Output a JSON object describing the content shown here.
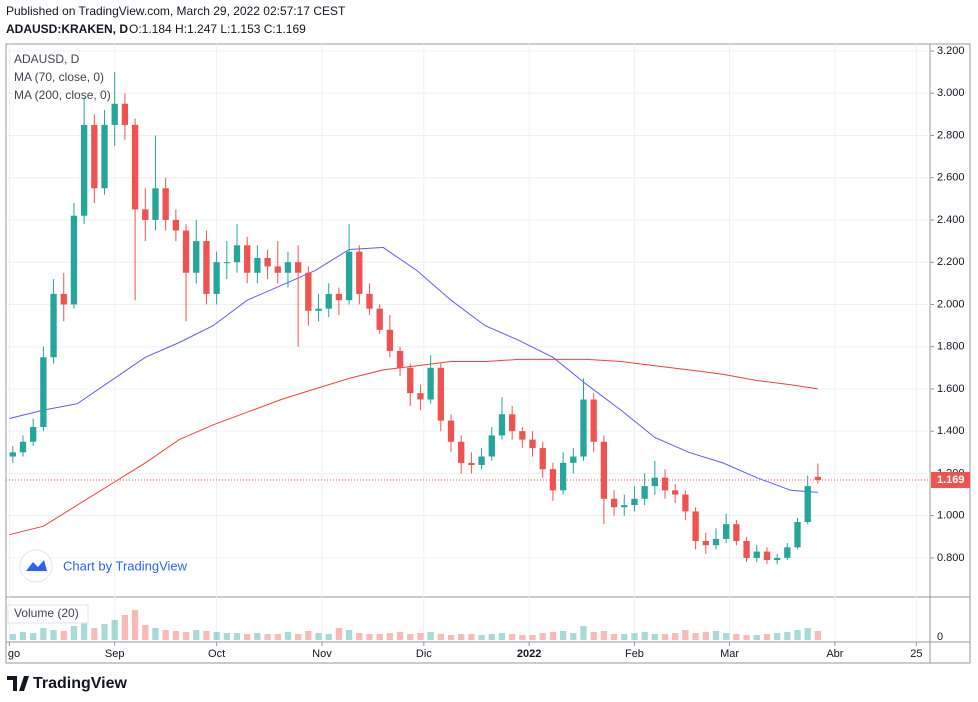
{
  "header": {
    "published": "Published on TradingView.com, March 29, 2022 02:57:17 CEST",
    "symbol": "ADAUSD:KRAKEN, D",
    "ohlc": "O:1.184 H:1.247 L:1.153 C:1.169"
  },
  "chart_data": {
    "type": "candlestick",
    "legend_title": "ADAUSD, D",
    "up_color": "#26a69a",
    "down_color": "#ef5350",
    "x": [
      1,
      4,
      7,
      10,
      13,
      16,
      19,
      22,
      25,
      28,
      31,
      34,
      37,
      40,
      43,
      46,
      49,
      52,
      55,
      58,
      61,
      64,
      67,
      70,
      73,
      76,
      79,
      82,
      85,
      88,
      91,
      94,
      97,
      100,
      103,
      106,
      109,
      112,
      115,
      118,
      121,
      124,
      127,
      130,
      133,
      136,
      139,
      142,
      145,
      148,
      151,
      154,
      157,
      160,
      163,
      166,
      169,
      172,
      175,
      178,
      181,
      184,
      187,
      190,
      193,
      196,
      199,
      202,
      205,
      208,
      211,
      214,
      217,
      220,
      223,
      226,
      229,
      232,
      235,
      238
    ],
    "ohlc": [
      [
        1.28,
        1.33,
        1.25,
        1.3
      ],
      [
        1.3,
        1.38,
        1.28,
        1.35
      ],
      [
        1.35,
        1.46,
        1.33,
        1.42
      ],
      [
        1.42,
        1.8,
        1.4,
        1.75
      ],
      [
        1.75,
        2.12,
        1.72,
        2.05
      ],
      [
        2.05,
        2.15,
        1.92,
        2.0
      ],
      [
        2.0,
        2.48,
        1.98,
        2.42
      ],
      [
        2.42,
        2.98,
        2.38,
        2.85
      ],
      [
        2.85,
        2.9,
        2.48,
        2.55
      ],
      [
        2.55,
        2.92,
        2.52,
        2.85
      ],
      [
        2.85,
        3.1,
        2.75,
        2.95
      ],
      [
        2.95,
        3.0,
        2.78,
        2.85
      ],
      [
        2.85,
        2.88,
        2.02,
        2.45
      ],
      [
        2.45,
        2.55,
        2.3,
        2.4
      ],
      [
        2.4,
        2.8,
        2.35,
        2.55
      ],
      [
        2.55,
        2.6,
        2.35,
        2.4
      ],
      [
        2.4,
        2.45,
        2.3,
        2.35
      ],
      [
        2.35,
        2.38,
        1.92,
        2.15
      ],
      [
        2.15,
        2.4,
        2.1,
        2.3
      ],
      [
        2.3,
        2.35,
        2.0,
        2.05
      ],
      [
        2.05,
        2.25,
        2.0,
        2.2
      ],
      [
        2.2,
        2.3,
        2.12,
        2.2
      ],
      [
        2.2,
        2.38,
        2.15,
        2.28
      ],
      [
        2.28,
        2.32,
        2.1,
        2.15
      ],
      [
        2.15,
        2.28,
        2.1,
        2.22
      ],
      [
        2.22,
        2.26,
        2.12,
        2.18
      ],
      [
        2.18,
        2.3,
        2.1,
        2.15
      ],
      [
        2.15,
        2.25,
        2.08,
        2.2
      ],
      [
        2.2,
        2.28,
        1.8,
        2.15
      ],
      [
        2.15,
        2.18,
        1.9,
        1.97
      ],
      [
        1.97,
        2.05,
        1.92,
        1.98
      ],
      [
        1.98,
        2.1,
        1.94,
        2.05
      ],
      [
        2.05,
        2.08,
        1.95,
        2.02
      ],
      [
        2.02,
        2.38,
        2.0,
        2.25
      ],
      [
        2.25,
        2.28,
        2.0,
        2.05
      ],
      [
        2.05,
        2.1,
        1.95,
        1.98
      ],
      [
        1.98,
        2.0,
        1.86,
        1.88
      ],
      [
        1.88,
        1.95,
        1.75,
        1.78
      ],
      [
        1.78,
        1.8,
        1.66,
        1.7
      ],
      [
        1.7,
        1.72,
        1.52,
        1.58
      ],
      [
        1.58,
        1.62,
        1.5,
        1.55
      ],
      [
        1.55,
        1.76,
        1.53,
        1.7
      ],
      [
        1.7,
        1.72,
        1.4,
        1.45
      ],
      [
        1.45,
        1.48,
        1.3,
        1.35
      ],
      [
        1.35,
        1.38,
        1.2,
        1.25
      ],
      [
        1.25,
        1.3,
        1.2,
        1.24
      ],
      [
        1.24,
        1.32,
        1.22,
        1.28
      ],
      [
        1.28,
        1.42,
        1.26,
        1.38
      ],
      [
        1.38,
        1.56,
        1.36,
        1.48
      ],
      [
        1.48,
        1.52,
        1.36,
        1.4
      ],
      [
        1.4,
        1.42,
        1.32,
        1.36
      ],
      [
        1.36,
        1.4,
        1.28,
        1.32
      ],
      [
        1.32,
        1.35,
        1.18,
        1.22
      ],
      [
        1.22,
        1.25,
        1.07,
        1.12
      ],
      [
        1.12,
        1.3,
        1.1,
        1.25
      ],
      [
        1.25,
        1.32,
        1.2,
        1.28
      ],
      [
        1.28,
        1.65,
        1.26,
        1.55
      ],
      [
        1.55,
        1.58,
        1.3,
        1.35
      ],
      [
        1.35,
        1.38,
        0.96,
        1.08
      ],
      [
        1.08,
        1.12,
        1.0,
        1.04
      ],
      [
        1.04,
        1.1,
        1.0,
        1.05
      ],
      [
        1.05,
        1.14,
        1.02,
        1.08
      ],
      [
        1.08,
        1.2,
        1.05,
        1.14
      ],
      [
        1.14,
        1.26,
        1.1,
        1.18
      ],
      [
        1.18,
        1.22,
        1.08,
        1.12
      ],
      [
        1.12,
        1.15,
        1.06,
        1.1
      ],
      [
        1.1,
        1.12,
        0.98,
        1.02
      ],
      [
        1.02,
        1.04,
        0.84,
        0.88
      ],
      [
        0.88,
        0.92,
        0.82,
        0.86
      ],
      [
        0.86,
        0.94,
        0.84,
        0.89
      ],
      [
        0.89,
        1.01,
        0.87,
        0.96
      ],
      [
        0.96,
        0.98,
        0.86,
        0.88
      ],
      [
        0.88,
        0.9,
        0.78,
        0.8
      ],
      [
        0.8,
        0.86,
        0.78,
        0.83
      ],
      [
        0.83,
        0.85,
        0.77,
        0.79
      ],
      [
        0.79,
        0.82,
        0.77,
        0.8
      ],
      [
        0.8,
        0.87,
        0.79,
        0.85
      ],
      [
        0.85,
        0.99,
        0.84,
        0.97
      ],
      [
        0.97,
        1.19,
        0.96,
        1.14
      ],
      [
        1.184,
        1.247,
        1.153,
        1.169
      ]
    ],
    "xlim": [
      -1,
      271
    ],
    "xticks": [
      {
        "value": 0,
        "label": "go"
      },
      {
        "value": 31,
        "label": "Sep"
      },
      {
        "value": 61,
        "label": "Oct"
      },
      {
        "value": 92,
        "label": "Nov"
      },
      {
        "value": 122,
        "label": "Dic"
      },
      {
        "value": 153,
        "label": "2022"
      },
      {
        "value": 184,
        "label": "Feb"
      },
      {
        "value": 212,
        "label": "Mar"
      },
      {
        "value": 243,
        "label": "Abr"
      },
      {
        "value": 267,
        "label": "25"
      }
    ],
    "ylim": [
      0.615,
      3.233
    ],
    "yticks": [
      {
        "value": 0.8,
        "label": "0.800"
      },
      {
        "value": 1.0,
        "label": "1.000"
      },
      {
        "value": 1.2,
        "label": "1.200"
      },
      {
        "value": 1.4,
        "label": "1.400"
      },
      {
        "value": 1.6,
        "label": "1.600"
      },
      {
        "value": 1.8,
        "label": "1.800"
      },
      {
        "value": 2.0,
        "label": "2.000"
      },
      {
        "value": 2.2,
        "label": "2.200"
      },
      {
        "value": 2.4,
        "label": "2.400"
      },
      {
        "value": 2.6,
        "label": "2.600"
      },
      {
        "value": 2.8,
        "label": "2.800"
      },
      {
        "value": 3.0,
        "label": "3.000"
      },
      {
        "value": 3.2,
        "label": "3.200"
      }
    ],
    "grid": true,
    "last_price": 1.169,
    "last_price_color": "#ef5350",
    "moving_averages": [
      {
        "name": "MA (70, close, 0)",
        "color": "#5b5ef0",
        "x": [
          0,
          10,
          20,
          30,
          40,
          50,
          60,
          70,
          80,
          90,
          100,
          110,
          120,
          130,
          140,
          150,
          160,
          170,
          180,
          190,
          200,
          210,
          220,
          230,
          238
        ],
        "values": [
          1.46,
          1.5,
          1.53,
          1.64,
          1.75,
          1.82,
          1.9,
          2.02,
          2.09,
          2.16,
          2.26,
          2.27,
          2.16,
          2.02,
          1.9,
          1.83,
          1.75,
          1.62,
          1.5,
          1.37,
          1.3,
          1.25,
          1.18,
          1.12,
          1.11
        ]
      },
      {
        "name": "MA (200, close, 0)",
        "color": "#f0433b",
        "x": [
          0,
          10,
          20,
          30,
          40,
          50,
          60,
          70,
          80,
          90,
          100,
          110,
          120,
          130,
          140,
          150,
          160,
          170,
          180,
          190,
          200,
          210,
          220,
          230,
          238
        ],
        "values": [
          0.91,
          0.95,
          1.05,
          1.15,
          1.25,
          1.36,
          1.43,
          1.49,
          1.55,
          1.6,
          1.65,
          1.69,
          1.71,
          1.73,
          1.73,
          1.74,
          1.74,
          1.74,
          1.73,
          1.71,
          1.69,
          1.67,
          1.64,
          1.62,
          1.6
        ]
      }
    ],
    "volume": {
      "name": "Volume (20)",
      "ylim": [
        0,
        40
      ],
      "yticks": [
        0
      ],
      "values": [
        6,
        8,
        7,
        12,
        10,
        9,
        14,
        18,
        12,
        16,
        20,
        25,
        30,
        15,
        12,
        10,
        9,
        8,
        10,
        9,
        8,
        7,
        7,
        6,
        7,
        6,
        6,
        8,
        6,
        9,
        7,
        6,
        12,
        10,
        7,
        6,
        6,
        7,
        8,
        6,
        7,
        8,
        6,
        5,
        6,
        6,
        5,
        6,
        7,
        6,
        5,
        5,
        7,
        8,
        9,
        7,
        14,
        8,
        9,
        6,
        6,
        7,
        8,
        6,
        6,
        7,
        10,
        7,
        8,
        9,
        7,
        6,
        5,
        5,
        6,
        7,
        8,
        10,
        12,
        9
      ]
    },
    "watermark": "Chart by TradingView"
  },
  "footer": {
    "brand": "TradingView"
  }
}
